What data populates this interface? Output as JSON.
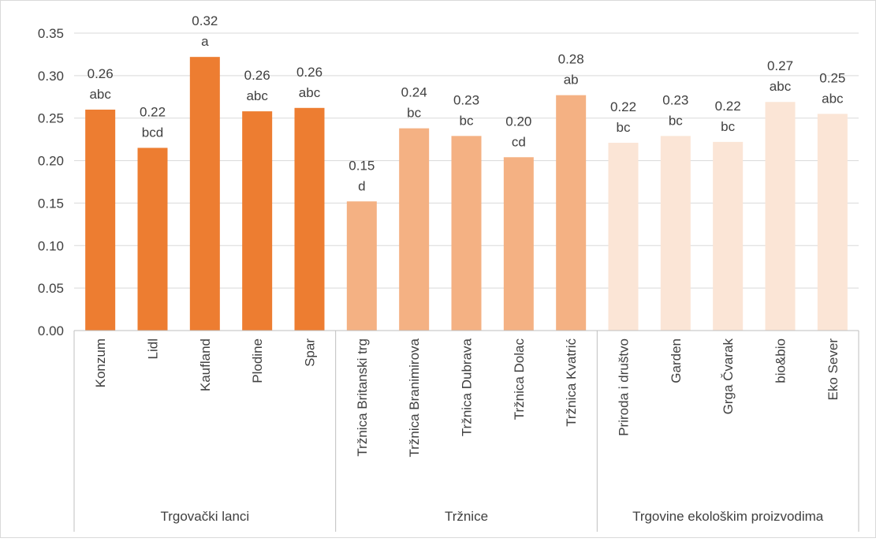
{
  "chart_data": {
    "type": "bar",
    "ylim": [
      0,
      0.35
    ],
    "yticks": [
      "0.00",
      "0.05",
      "0.10",
      "0.15",
      "0.20",
      "0.25",
      "0.30",
      "0.35"
    ],
    "grid": true,
    "groups": [
      {
        "name": "Trgovački lanci",
        "color": "#ED7D31",
        "categories": [
          "Konzum",
          "Lidl",
          "Kaufland",
          "Plodine",
          "Spar"
        ],
        "values": [
          0.26,
          0.215,
          0.322,
          0.258,
          0.262
        ],
        "value_labels": [
          "0.26",
          "0.22",
          "0.32",
          "0.26",
          "0.26"
        ],
        "letters": [
          "abc",
          "bcd",
          "a",
          "abc",
          "abc"
        ]
      },
      {
        "name": "Tržnice",
        "color": "#F4B183",
        "categories": [
          "Tržnica Britanski trg",
          "Tržnica Branimirova",
          "Tržnica Dubrava",
          "Tržnica Dolac",
          "Tržnica Kvatrić"
        ],
        "values": [
          0.152,
          0.238,
          0.229,
          0.204,
          0.277
        ],
        "value_labels": [
          "0.15",
          "0.24",
          "0.23",
          "0.20",
          "0.28"
        ],
        "letters": [
          "d",
          "bc",
          "bc",
          "cd",
          "ab"
        ]
      },
      {
        "name": "Trgovine ekološkim proizvodima",
        "color": "#FBE5D6",
        "categories": [
          "Priroda i društvo",
          "Garden",
          "Grga Čvarak",
          "bio&bio",
          "Eko Sever"
        ],
        "values": [
          0.221,
          0.229,
          0.222,
          0.269,
          0.255
        ],
        "value_labels": [
          "0.22",
          "0.23",
          "0.22",
          "0.27",
          "0.25"
        ],
        "letters": [
          "bc",
          "bc",
          "bc",
          "abc",
          "abc"
        ]
      }
    ]
  }
}
